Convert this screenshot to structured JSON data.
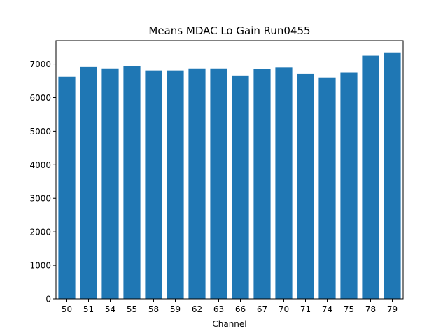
{
  "chart_data": {
    "type": "bar",
    "title": "Means MDAC Lo Gain Run0455",
    "xlabel": "Channel",
    "ylabel": "",
    "categories": [
      "50",
      "51",
      "54",
      "55",
      "58",
      "59",
      "62",
      "63",
      "66",
      "67",
      "70",
      "71",
      "74",
      "75",
      "78",
      "79"
    ],
    "values": [
      6620,
      6910,
      6870,
      6940,
      6810,
      6810,
      6870,
      6870,
      6660,
      6850,
      6900,
      6700,
      6600,
      6750,
      7250,
      7330
    ],
    "ylim": [
      0,
      7700
    ],
    "yticks": [
      0,
      1000,
      2000,
      3000,
      4000,
      5000,
      6000,
      7000
    ],
    "grid": false,
    "bar_color": "#1f77b4"
  }
}
